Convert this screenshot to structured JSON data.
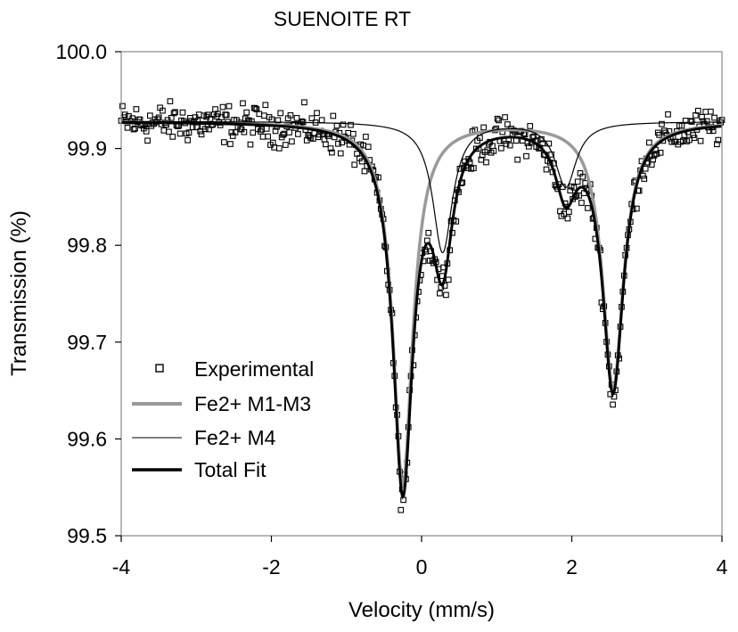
{
  "chart_data": {
    "type": "scatter",
    "title": "SUENOITE RT",
    "xlabel": "Velocity (mm/s)",
    "ylabel": "Transmission (%)",
    "xlim": [
      -4,
      4
    ],
    "ylim": [
      99.5,
      100.0
    ],
    "x_ticks": [
      -4,
      -2,
      0,
      2,
      4
    ],
    "y_ticks": [
      99.5,
      99.6,
      99.7,
      99.8,
      99.9,
      100.0
    ],
    "x_tick_labels": [
      "-4",
      "-2",
      "0",
      "2",
      "4"
    ],
    "y_tick_labels": [
      "99.5",
      "99.6",
      "99.7",
      "99.8",
      "99.9",
      "100.0"
    ],
    "grid": false,
    "legend_position": "lower-left",
    "baseline": 99.928,
    "series": [
      {
        "name": "Experimental",
        "kind": "scatter",
        "marker": "open-square",
        "color": "#000000",
        "count": 480,
        "noise_amplitude": 0.02
      },
      {
        "name": "Fe2+ M1-M3",
        "kind": "line",
        "color": "#999999",
        "doublet": {
          "peaks": [
            -0.25,
            2.55
          ],
          "depths": [
            0.375,
            0.275
          ],
          "hwhm": [
            0.16,
            0.17
          ]
        }
      },
      {
        "name": "Fe2+ M4",
        "kind": "line",
        "color": "#000000",
        "doublet": {
          "peaks": [
            0.28,
            1.92
          ],
          "depths": [
            0.135,
            0.067
          ],
          "hwhm": [
            0.16,
            0.17
          ]
        }
      },
      {
        "name": "Total Fit",
        "kind": "line",
        "color": "#000000",
        "sum_of": [
          "Fe2+ M1-M3",
          "Fe2+ M4"
        ]
      }
    ]
  }
}
